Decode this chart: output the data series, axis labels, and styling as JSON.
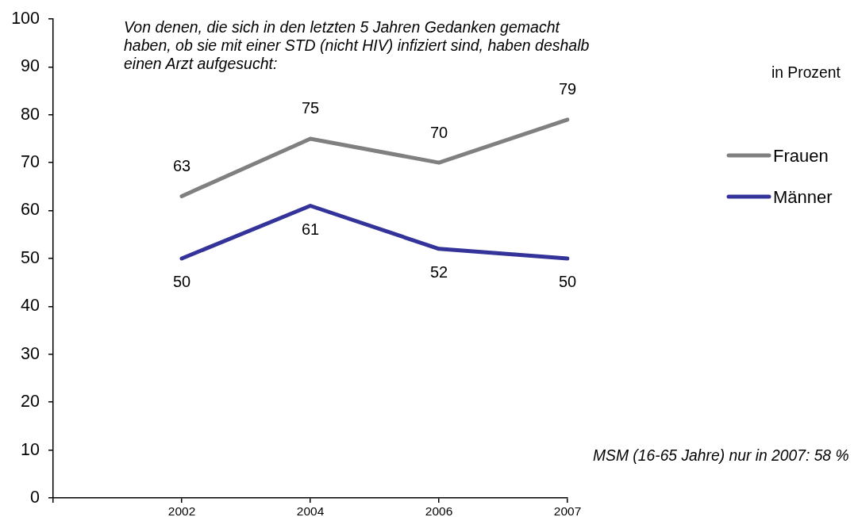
{
  "chart_data": {
    "type": "line",
    "title": "Von denen, die sich in den letzten 5 Jahren Gedanken gemacht haben, ob sie mit einer STD (nicht HIV) infiziert sind, haben deshalb einen Arzt aufgesucht:",
    "categories": [
      null,
      "2002",
      "2004",
      "2006",
      "2007"
    ],
    "series": [
      {
        "name": "Frauen",
        "color": "#808080",
        "values": [
          null,
          63,
          75,
          70,
          79
        ]
      },
      {
        "name": "Männer",
        "color": "#333399",
        "values": [
          null,
          50,
          61,
          52,
          50
        ]
      }
    ],
    "ylim": [
      0,
      100
    ],
    "yticks": [
      0,
      10,
      20,
      30,
      40,
      50,
      60,
      70,
      80,
      90,
      100
    ],
    "data_labels": true,
    "legend": "right",
    "annotations": [
      "in Prozent",
      "MSM (16-65 Jahre) nur in 2007: 58 %"
    ]
  }
}
